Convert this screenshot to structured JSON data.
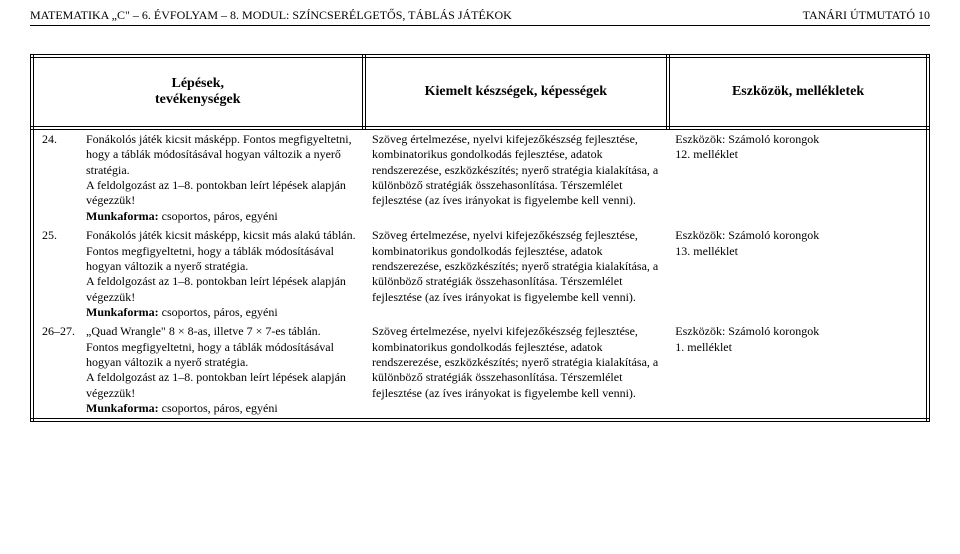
{
  "header": {
    "left": "MATEMATIKA „C\" – 6. ÉVFOLYAM – 8. MODUL: SZÍNCSERÉLGETŐS, TÁBLÁS JÁTÉKOK",
    "right": "TANÁRI ÚTMUTATÓ    10"
  },
  "table": {
    "columns": {
      "c1_line1": "Lépések,",
      "c1_line2": "tevékenységek",
      "c2": "Kiemelt készségek, képességek",
      "c3": "Eszközök, mellékletek"
    },
    "rows": [
      {
        "num": "24.",
        "text1": "Fonákolós játék kicsit másképp. Fontos megfigyeltetni, hogy a táblák módosításával hogyan változik a nyerő stratégia.",
        "text2": "A feldolgozást az 1–8. pontokban leírt lépések alapján végezzük!",
        "munka_lbl": "Munkaforma: ",
        "munka_val": "csoportos, páros, egyéni",
        "col2": "Szöveg értelmezése, nyelvi kifejezőkészség fejlesztése, kombinatorikus gondolkodás fejlesztése, adatok rendszerezése, eszközkészítés; nyerő stratégia kialakítása, a különböző stratégiák összehasonlítása. Térszemlélet fejlesztése (az íves irányokat is figyelembe kell venni).",
        "col3a": "Eszközök: Számoló korongok",
        "col3b": "12. melléklet"
      },
      {
        "num": "25.",
        "text1": "Fonákolós játék kicsit másképp, kicsit más alakú táblán. Fontos megfigyeltetni, hogy a táblák módosításával hogyan változik a nyerő stratégia.",
        "text2": "A feldolgozást az 1–8. pontokban leírt lépések alapján végezzük!",
        "munka_lbl": "Munkaforma: ",
        "munka_val": "csoportos, páros, egyéni",
        "col2": "Szöveg értelmezése, nyelvi kifejezőkészség fejlesztése, kombinatorikus gondolkodás fejlesztése, adatok rendszerezése, eszközkészítés; nyerő stratégia kialakítása, a különböző stratégiák összehasonlítása. Térszemlélet fejlesztése (az íves irányokat is figyelembe kell venni).",
        "col3a": "Eszközök: Számoló korongok",
        "col3b": "13. melléklet"
      },
      {
        "num": "26–27.",
        "text1": "„Quad Wrangle\" 8 × 8-as, illetve 7 × 7-es táblán. Fontos megfigyeltetni, hogy a táblák módosításával hogyan változik a nyerő stratégia.",
        "text2": "A feldolgozást az 1–8. pontokban leírt lépések alapján végezzük!",
        "munka_lbl": "Munkaforma: ",
        "munka_val": "csoportos, páros, egyéni",
        "col2": "Szöveg értelmezése, nyelvi kifejezőkészség fejlesztése, kombinatorikus gondolkodás fejlesztése, adatok rendszerezése, eszközkészítés; nyerő stratégia kialakítása, a különböző stratégiák összehasonlítása. Térszemlélet fejlesztése (az íves irányokat is figyelembe kell venni).",
        "col3a": "Eszközök: Számoló korongok",
        "col3b": "1. melléklet"
      }
    ]
  }
}
